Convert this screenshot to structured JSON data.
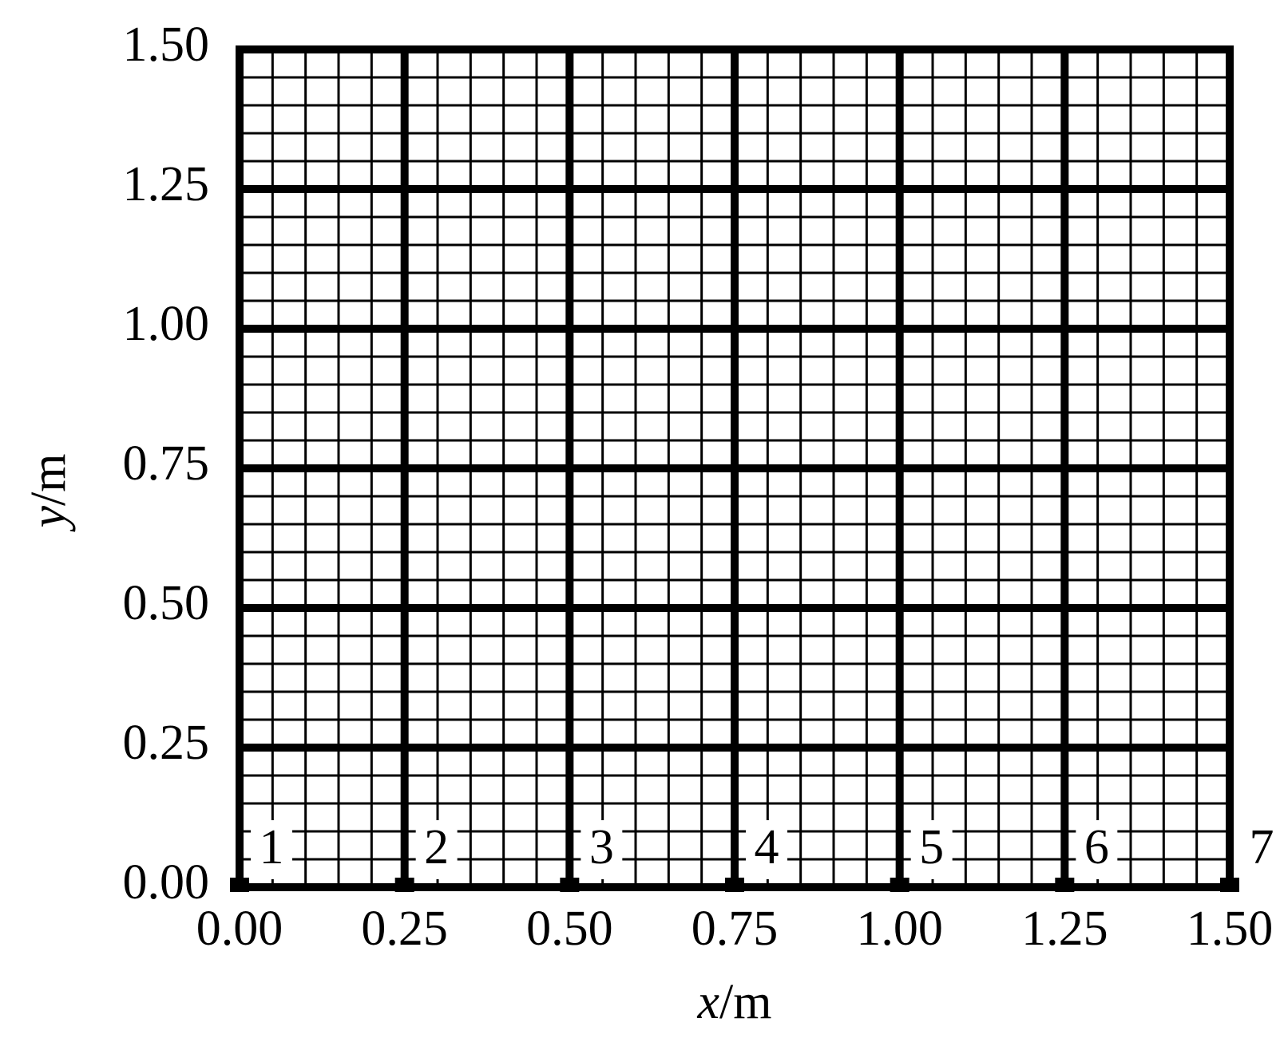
{
  "chart_data": {
    "type": "mesh",
    "xlabel": "x/m",
    "ylabel": "y/m",
    "xlim": [
      0,
      1.5
    ],
    "ylim": [
      0,
      1.5
    ],
    "xticks": [
      {
        "value": 0,
        "label": "0.00"
      },
      {
        "value": 0.25,
        "label": "0.25"
      },
      {
        "value": 0.5,
        "label": "0.50"
      },
      {
        "value": 0.75,
        "label": "0.75"
      },
      {
        "value": 1,
        "label": "1.00"
      },
      {
        "value": 1.25,
        "label": "1.25"
      },
      {
        "value": 1.5,
        "label": "1.50"
      }
    ],
    "yticks": [
      {
        "value": 0,
        "label": "0.00"
      },
      {
        "value": 0.25,
        "label": "0.25"
      },
      {
        "value": 0.5,
        "label": "0.50"
      },
      {
        "value": 0.75,
        "label": "0.75"
      },
      {
        "value": 1,
        "label": "1.00"
      },
      {
        "value": 1.25,
        "label": "1.25"
      },
      {
        "value": 1.5,
        "label": "1.50"
      }
    ],
    "grid": true,
    "minor_divisions": 5,
    "color": "#000000",
    "points": {
      "labels": [
        "1",
        "2",
        "3",
        "4",
        "5",
        "6",
        "7"
      ],
      "x": [
        0,
        0.25,
        0.5,
        0.75,
        1,
        1.25,
        1.5
      ],
      "values": [
        0,
        0,
        0,
        0,
        0,
        0,
        0
      ]
    }
  }
}
